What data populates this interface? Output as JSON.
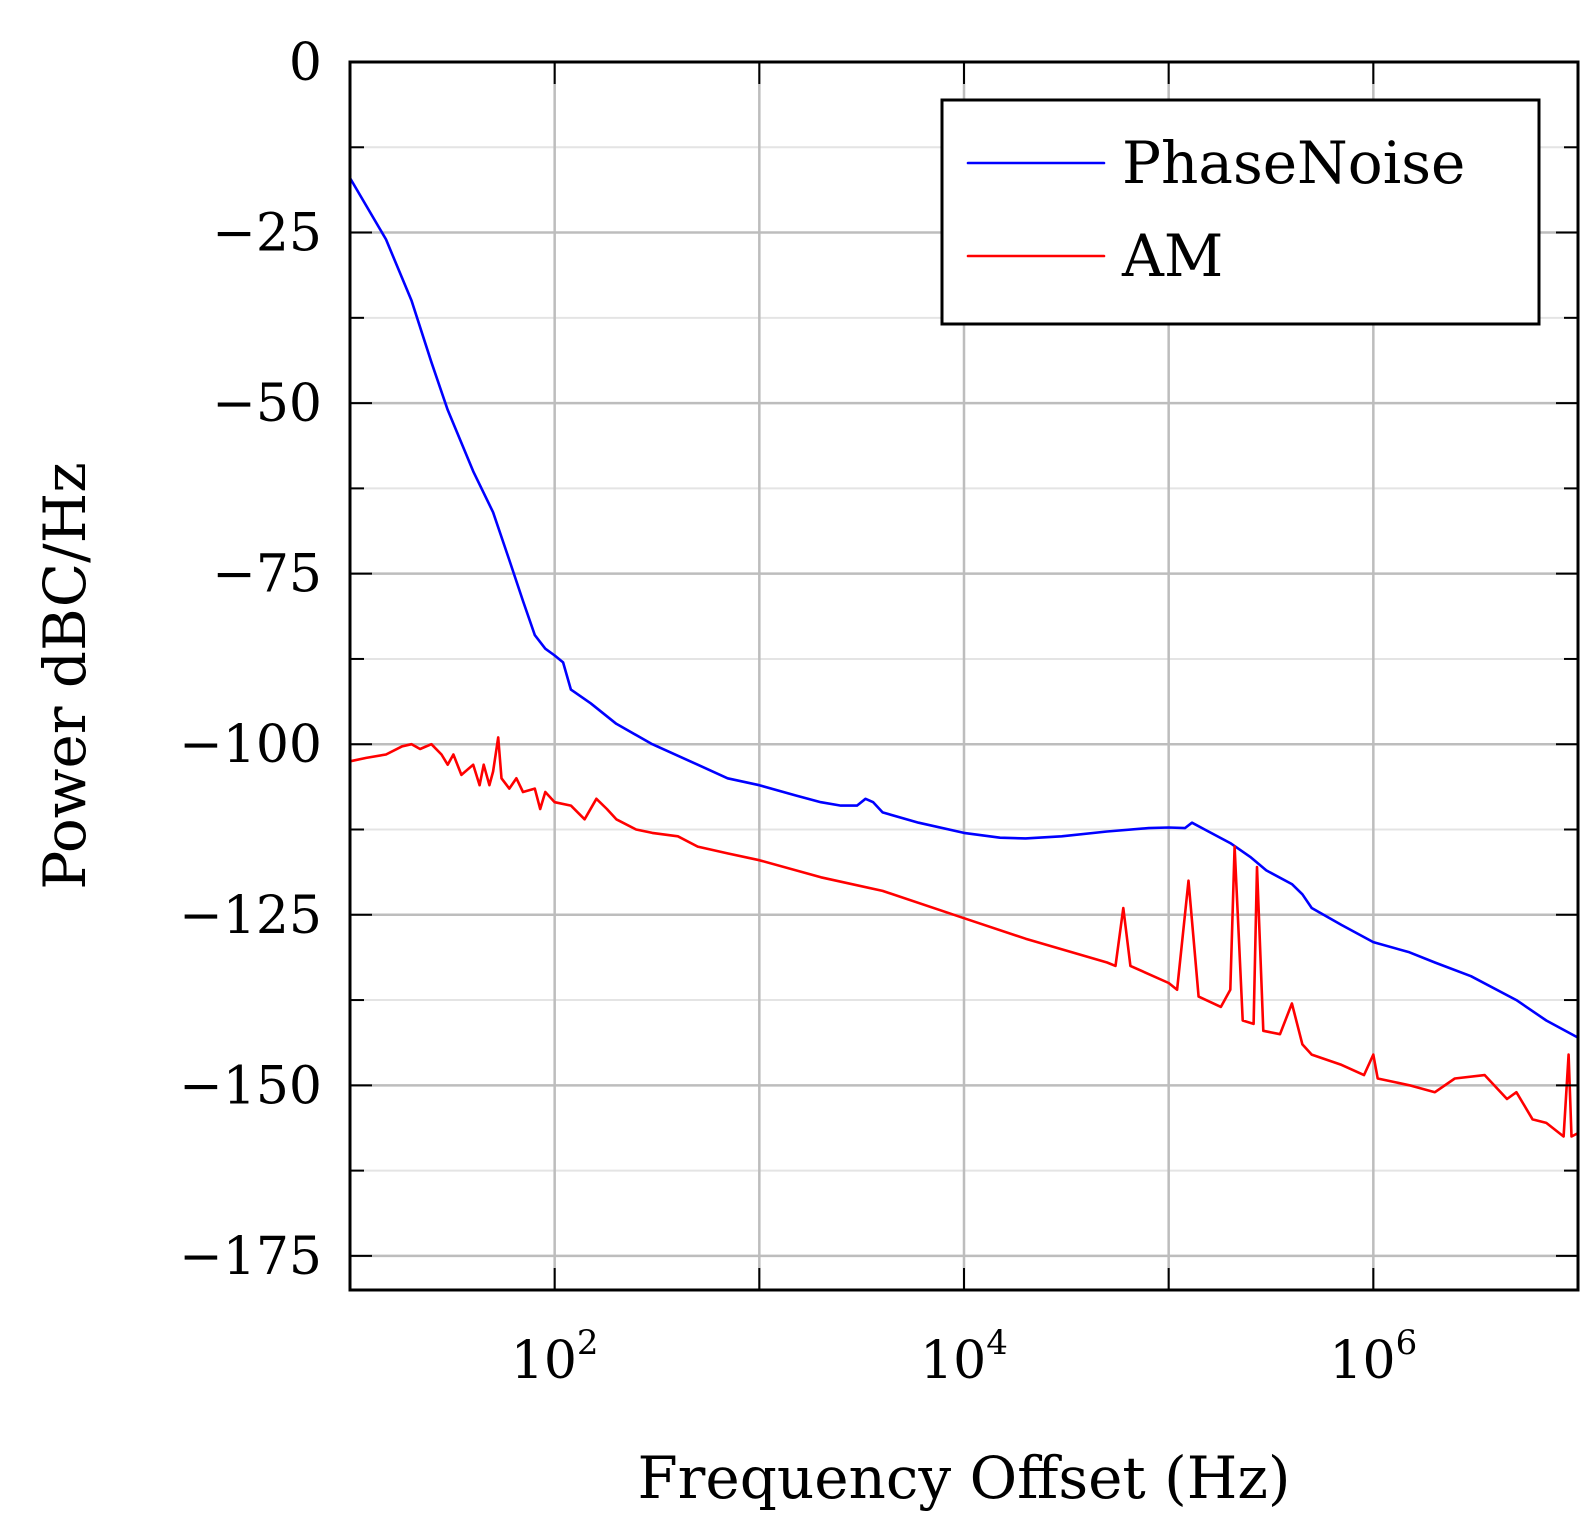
{
  "chart_data": {
    "type": "line",
    "title": "",
    "xlabel": "Frequency Offset (Hz)",
    "ylabel": "Power dBC/Hz",
    "xscale": "log",
    "xlim": [
      10,
      10000000
    ],
    "ylim": [
      -180,
      0
    ],
    "grid": true,
    "legend_position": "top-right",
    "y_ticks": [
      0,
      -25,
      -50,
      -75,
      -100,
      -125,
      -150,
      -175
    ],
    "y_tick_labels": [
      "0",
      "−25",
      "−50",
      "−75",
      "−100",
      "−125",
      "−150",
      "−175"
    ],
    "x_ticks": [
      {
        "value": 100,
        "base": "10",
        "exp": "2"
      },
      {
        "value": 10000,
        "base": "10",
        "exp": "4"
      },
      {
        "value": 1000000,
        "base": "10",
        "exp": "6"
      }
    ],
    "series": [
      {
        "name": "PhaseNoise",
        "color": "#0000ff",
        "points": [
          [
            10,
            -17
          ],
          [
            15,
            -26
          ],
          [
            20,
            -35
          ],
          [
            25,
            -44
          ],
          [
            30,
            -51
          ],
          [
            40,
            -60
          ],
          [
            50,
            -66
          ],
          [
            60,
            -73
          ],
          [
            70,
            -79
          ],
          [
            80,
            -84
          ],
          [
            90,
            -86
          ],
          [
            100,
            -87
          ],
          [
            110,
            -88
          ],
          [
            120,
            -92
          ],
          [
            150,
            -94
          ],
          [
            200,
            -97
          ],
          [
            300,
            -100
          ],
          [
            500,
            -103
          ],
          [
            700,
            -105
          ],
          [
            1000,
            -106
          ],
          [
            1500,
            -107.5
          ],
          [
            2000,
            -108.5
          ],
          [
            2500,
            -109
          ],
          [
            3000,
            -109
          ],
          [
            3300,
            -108
          ],
          [
            3600,
            -108.5
          ],
          [
            4000,
            -110
          ],
          [
            6000,
            -111.5
          ],
          [
            10000,
            -113
          ],
          [
            15000,
            -113.7
          ],
          [
            20000,
            -113.8
          ],
          [
            30000,
            -113.5
          ],
          [
            50000,
            -112.8
          ],
          [
            80000,
            -112.3
          ],
          [
            100000,
            -112.2
          ],
          [
            120000,
            -112.3
          ],
          [
            130000,
            -111.5
          ],
          [
            150000,
            -112.5
          ],
          [
            200000,
            -114.5
          ],
          [
            250000,
            -116.5
          ],
          [
            300000,
            -118.5
          ],
          [
            400000,
            -120.5
          ],
          [
            450000,
            -122
          ],
          [
            500000,
            -124
          ],
          [
            700000,
            -126.5
          ],
          [
            1000000,
            -129
          ],
          [
            1500000,
            -130.5
          ],
          [
            2000000,
            -132
          ],
          [
            3000000,
            -134
          ],
          [
            5000000,
            -137.5
          ],
          [
            7000000,
            -140.5
          ],
          [
            10000000,
            -143
          ]
        ]
      },
      {
        "name": "AM",
        "color": "#ff0000",
        "points": [
          [
            10,
            -102.5
          ],
          [
            12,
            -102
          ],
          [
            15,
            -101.5
          ],
          [
            18,
            -100.3
          ],
          [
            20,
            -100
          ],
          [
            22,
            -100.7
          ],
          [
            25,
            -100
          ],
          [
            28,
            -101.5
          ],
          [
            30,
            -103
          ],
          [
            32,
            -101.5
          ],
          [
            35,
            -104.5
          ],
          [
            40,
            -103
          ],
          [
            43,
            -106
          ],
          [
            45,
            -103
          ],
          [
            48,
            -106
          ],
          [
            50,
            -104
          ],
          [
            53,
            -99
          ],
          [
            55,
            -105
          ],
          [
            60,
            -106.5
          ],
          [
            65,
            -105
          ],
          [
            70,
            -107
          ],
          [
            80,
            -106.5
          ],
          [
            85,
            -109.5
          ],
          [
            90,
            -107
          ],
          [
            100,
            -108.5
          ],
          [
            120,
            -109
          ],
          [
            140,
            -111
          ],
          [
            160,
            -108
          ],
          [
            180,
            -109.5
          ],
          [
            200,
            -111
          ],
          [
            250,
            -112.5
          ],
          [
            300,
            -113
          ],
          [
            400,
            -113.5
          ],
          [
            500,
            -115
          ],
          [
            700,
            -116
          ],
          [
            1000,
            -117
          ],
          [
            2000,
            -119.5
          ],
          [
            4000,
            -121.5
          ],
          [
            10000,
            -125.5
          ],
          [
            20000,
            -128.5
          ],
          [
            50000,
            -132
          ],
          [
            55000,
            -132.5
          ],
          [
            60000,
            -124
          ],
          [
            65000,
            -132.5
          ],
          [
            100000,
            -135
          ],
          [
            110000,
            -136
          ],
          [
            125000,
            -120
          ],
          [
            140000,
            -137
          ],
          [
            180000,
            -138.5
          ],
          [
            200000,
            -136
          ],
          [
            210000,
            -115
          ],
          [
            230000,
            -140.5
          ],
          [
            260000,
            -141
          ],
          [
            270000,
            -118
          ],
          [
            290000,
            -142
          ],
          [
            350000,
            -142.5
          ],
          [
            400000,
            -138
          ],
          [
            450000,
            -144
          ],
          [
            500000,
            -145.5
          ],
          [
            700000,
            -147
          ],
          [
            900000,
            -148.5
          ],
          [
            1000000,
            -145.5
          ],
          [
            1050000,
            -149
          ],
          [
            1500000,
            -150
          ],
          [
            2000000,
            -151
          ],
          [
            2500000,
            -149
          ],
          [
            3500000,
            -148.5
          ],
          [
            4500000,
            -152
          ],
          [
            5000000,
            -151
          ],
          [
            6000000,
            -155
          ],
          [
            7000000,
            -155.5
          ],
          [
            8500000,
            -157.5
          ],
          [
            9000000,
            -145.5
          ],
          [
            9300000,
            -157.5
          ],
          [
            10000000,
            -157
          ]
        ]
      }
    ]
  }
}
